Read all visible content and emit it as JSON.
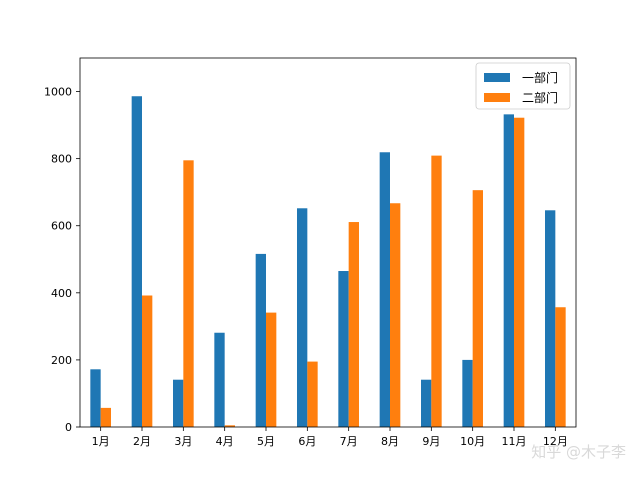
{
  "chart_data": {
    "type": "bar",
    "categories": [
      "1月",
      "2月",
      "3月",
      "4月",
      "5月",
      "6月",
      "7月",
      "8月",
      "9月",
      "10月",
      "11月",
      "12月"
    ],
    "series": [
      {
        "name": "一部门",
        "color": "#1f77b4",
        "values": [
          172,
          986,
          141,
          281,
          516,
          652,
          465,
          819,
          141,
          200,
          932,
          646
        ]
      },
      {
        "name": "二部门",
        "color": "#ff7f0e",
        "values": [
          57,
          392,
          795,
          5,
          341,
          195,
          611,
          667,
          809,
          706,
          922,
          357
        ]
      }
    ],
    "ylim": [
      0,
      1100
    ],
    "yticks": [
      0,
      200,
      400,
      600,
      800,
      1000
    ],
    "legend_position": "top-right",
    "grid": false,
    "title": "",
    "xlabel": "",
    "ylabel": ""
  },
  "watermark": "知乎 @木子李"
}
